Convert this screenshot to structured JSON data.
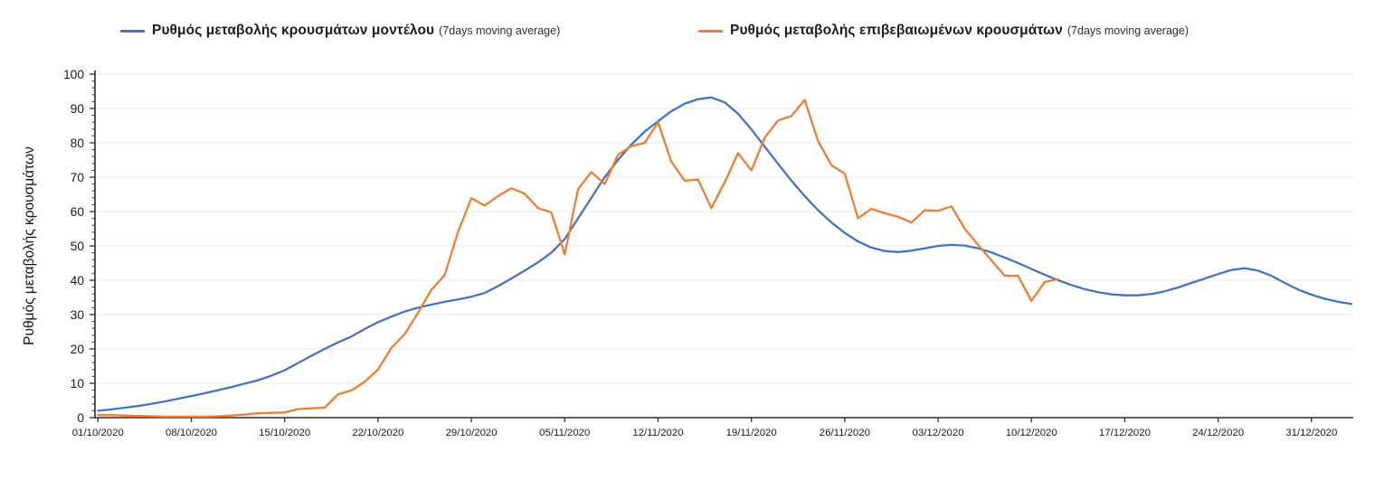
{
  "page": {
    "background": "#ffffff"
  },
  "legend": [
    {
      "label": "Ρυθμός μεταβολής κρουσμάτων μοντέλου",
      "suffix": "(7days moving average)",
      "color": "#4472c4"
    },
    {
      "label": "Ρυθμός μεταβολής επιβεβαιωμένων κρουσμάτων",
      "suffix": "(7days moving average)",
      "color": "#ed7d31"
    }
  ],
  "chart_data": {
    "type": "line",
    "title": "",
    "xlabel": "",
    "ylabel": "Ρυθμός μεταβολής κρουσμάτων",
    "ylim": [
      0,
      100
    ],
    "y_ticks": [
      0,
      10,
      20,
      30,
      40,
      50,
      60,
      70,
      80,
      90,
      100
    ],
    "y_minor_tick_step": 2,
    "grid": "horizontal",
    "legend_position": "top",
    "x_start_date": "01/10/2020",
    "x_ticks": [
      {
        "day": 0,
        "label": "01/10/2020"
      },
      {
        "day": 7,
        "label": "08/10/2020"
      },
      {
        "day": 14,
        "label": "15/10/2020"
      },
      {
        "day": 21,
        "label": "22/10/2020"
      },
      {
        "day": 28,
        "label": "29/10/2020"
      },
      {
        "day": 35,
        "label": "05/11/2020"
      },
      {
        "day": 42,
        "label": "12/11/2020"
      },
      {
        "day": 49,
        "label": "19/11/2020"
      },
      {
        "day": 56,
        "label": "26/11/2020"
      },
      {
        "day": 63,
        "label": "03/12/2020"
      },
      {
        "day": 70,
        "label": "10/12/2020"
      },
      {
        "day": 77,
        "label": "17/12/2020"
      },
      {
        "day": 84,
        "label": "24/12/2020"
      },
      {
        "day": 91,
        "label": "31/12/2020"
      }
    ],
    "series": [
      {
        "name": "Ρυθμός μεταβολής κρουσμάτων μοντέλου (7days moving average)",
        "color": "#4472c4",
        "start_day": 0,
        "values": [
          2,
          2.4,
          2.9,
          3.4,
          4,
          4.7,
          5.5,
          6.3,
          7.1,
          8,
          8.9,
          9.9,
          10.9,
          12.2,
          13.8,
          15.9,
          18,
          20,
          21.9,
          23.6,
          25.8,
          27.8,
          29.4,
          30.9,
          32,
          32.9,
          33.7,
          34.4,
          35.2,
          36.3,
          38.3,
          40.5,
          42.8,
          45.2,
          48,
          52,
          58,
          64,
          70,
          75,
          79.5,
          83.3,
          86.3,
          89.2,
          91.4,
          92.7,
          93.2,
          91.8,
          88.5,
          83.9,
          78.9,
          73.9,
          69,
          64.5,
          60.4,
          56.8,
          53.8,
          51.3,
          49.5,
          48.5,
          48.2,
          48.6,
          49.3,
          50,
          50.3,
          50.1,
          49.3,
          48.1,
          46.6,
          45,
          43.3,
          41.6,
          40,
          38.6,
          37.4,
          36.5,
          35.9,
          35.6,
          35.6,
          36,
          36.8,
          37.9,
          39.2,
          40.5,
          41.8,
          43,
          43.5,
          42.8,
          41.3,
          39.2,
          37.3,
          35.8,
          34.6,
          33.7,
          33.1
        ]
      },
      {
        "name": "Ρυθμός μεταβολής επιβεβαιωμένων κρουσμάτων (7days moving average)",
        "color": "#ed7d31",
        "start_day": 0,
        "values": [
          0.8,
          0.7,
          0.6,
          0.5,
          0.4,
          0.3,
          0.3,
          0.3,
          0.3,
          0.4,
          0.6,
          0.9,
          1.3,
          1.4,
          1.5,
          2.5,
          2.7,
          2.9,
          6.8,
          7.9,
          10.4,
          14,
          20.3,
          24.3,
          30.5,
          37.2,
          41.5,
          54,
          63.9,
          61.7,
          64.5,
          66.8,
          65.2,
          61,
          59.8,
          47.5,
          66.5,
          71.5,
          68,
          76.5,
          79,
          80,
          86,
          74.5,
          69,
          69.3,
          61,
          68.5,
          77,
          72,
          81.5,
          86.5,
          87.8,
          92.5,
          80.5,
          73.5,
          71,
          58,
          60.8,
          59.5,
          58.5,
          56.8,
          60.4,
          60.2,
          61.5,
          55,
          50.3,
          45.8,
          41.3,
          41.3,
          34,
          39.5,
          40.3
        ]
      }
    ]
  }
}
